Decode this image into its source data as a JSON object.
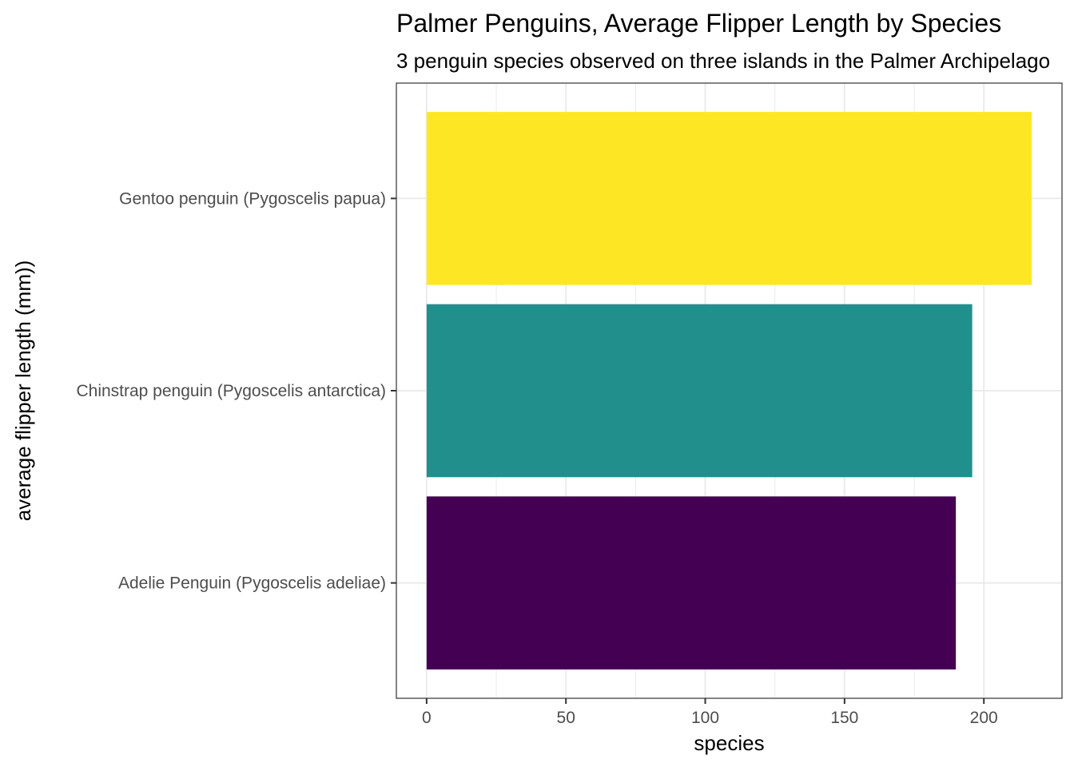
{
  "chart_data": {
    "type": "bar",
    "orientation": "horizontal",
    "title": "Palmer Penguins, Average Flipper Length by Species",
    "subtitle": "3 penguin species observed on three islands in the Palmer Archipelago",
    "xlabel": "species",
    "ylabel": "average flipper length (mm))",
    "categories": [
      "Adelie Penguin (Pygoscelis adeliae)",
      "Chinstrap penguin (Pygoscelis antarctica)",
      "Gentoo penguin (Pygoscelis papua)"
    ],
    "values": [
      189.95,
      195.82,
      217.19
    ],
    "colors": [
      "#440154",
      "#21908C",
      "#FDE725"
    ],
    "xlim": [
      -10.86,
      228.05
    ],
    "x_ticks": [
      0,
      50,
      100,
      150,
      200
    ],
    "x_minor_ticks": [
      25,
      75,
      125,
      175
    ],
    "grid": true,
    "legend": "none",
    "theme_colors": {
      "panel_border": "#333333",
      "grid": "#ebebeb",
      "tick_text": "#4d4d4d"
    }
  }
}
